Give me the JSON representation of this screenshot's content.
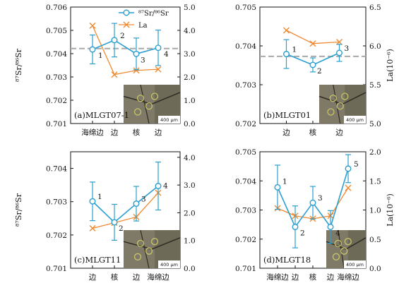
{
  "colors": {
    "sr_series": "#2a9fd0",
    "la_series": "#f08a32",
    "reference_line": "#a9a9a9",
    "axis": "#111111"
  },
  "legend": {
    "items": [
      {
        "label": "⁸⁷Sr/⁸⁶Sr",
        "series": "sr",
        "marker": "circle"
      },
      {
        "label": "La",
        "series": "la",
        "marker": "x"
      }
    ]
  },
  "chart_data": [
    {
      "type": "line",
      "panel_label": "(a)MLGT07-1",
      "categories": [
        "海绵边",
        "边",
        "核",
        "边"
      ],
      "ylabel_left": "⁸⁷Sr/⁸⁶Sr",
      "ylabel_right": "",
      "ylim_left": [
        0.701,
        0.706
      ],
      "yticks_left": [
        "0.701",
        "0.702",
        "0.703",
        "0.704",
        "0.705",
        "0.706"
      ],
      "ylim_right": [
        0.0,
        5.0
      ],
      "yticks_right": [
        "0.0",
        "1.0",
        "2.0",
        "3.0",
        "4.0",
        "5.0"
      ],
      "reference_line": 0.70422,
      "series": [
        {
          "name": "⁸⁷Sr/⁸⁶Sr",
          "axis": "left",
          "values": [
            0.70418,
            0.70458,
            0.70399,
            0.70425
          ],
          "error": [
            0.00062,
            0.00072,
            0.00068,
            0.00076
          ],
          "point_labels": [
            "1",
            "2",
            "3",
            "4"
          ]
        },
        {
          "name": "La",
          "axis": "right",
          "values": [
            4.2,
            2.1,
            2.28,
            2.33
          ]
        }
      ],
      "inset": {
        "scale_text": "400 μm"
      }
    },
    {
      "type": "line",
      "panel_label": "(b)MLGT01",
      "categories": [
        "边",
        "核",
        "边"
      ],
      "ylabel_left": "",
      "ylabel_right": "La(10⁻⁶)",
      "ylim_left": [
        0.702,
        0.705
      ],
      "yticks_left": [
        "0.702",
        "0.703",
        "0.704",
        "0.705"
      ],
      "ylim_right": [
        5.0,
        6.5
      ],
      "yticks_right": [
        "5.0",
        "5.5",
        "6.0",
        "6.5"
      ],
      "reference_line": 0.70373,
      "series": [
        {
          "name": "⁸⁷Sr/⁸⁶Sr",
          "axis": "left",
          "values": [
            0.70379,
            0.70351,
            0.70382
          ],
          "error": [
            0.00037,
            0.00018,
            0.00022
          ],
          "point_labels": [
            "1",
            "2",
            "3"
          ]
        },
        {
          "name": "La",
          "axis": "right",
          "values": [
            6.2,
            6.03,
            6.05
          ]
        }
      ],
      "inset": {
        "scale_text": "400 μm"
      }
    },
    {
      "type": "line",
      "panel_label": "(c)MLGT11",
      "categories": [
        "边",
        "核",
        "边",
        "海绵边"
      ],
      "ylabel_left": "⁸⁷Sr/⁸⁶Sr",
      "ylabel_right": "",
      "ylim_left": [
        0.701,
        0.7045
      ],
      "yticks_left": [
        "0.701",
        "0.702",
        "0.703",
        "0.704"
      ],
      "ylim_right": [
        0.0,
        4.2
      ],
      "yticks_right": [
        "0.0",
        "1.0",
        "2.0",
        "3.0",
        "4.0"
      ],
      "series": [
        {
          "name": "⁸⁷Sr/⁸⁶Sr",
          "axis": "left",
          "values": [
            0.70301,
            0.70238,
            0.70294,
            0.70347
          ],
          "error": [
            0.00058,
            0.00054,
            0.00052,
            0.00072
          ],
          "point_labels": [
            "1",
            "2",
            "3",
            "4"
          ]
        },
        {
          "name": "La",
          "axis": "right",
          "values": [
            1.44,
            1.64,
            1.85,
            2.72
          ]
        }
      ],
      "inset": {
        "scale_text": "400 μm"
      }
    },
    {
      "type": "line",
      "panel_label": "(d)MLGT18",
      "categories": [
        "海绵边",
        "边",
        "核",
        "边",
        "海绵边"
      ],
      "ylabel_left": "",
      "ylabel_right": "La(10⁻⁶)",
      "ylim_left": [
        0.701,
        0.705
      ],
      "yticks_left": [
        "0.701",
        "0.702",
        "0.703",
        "0.704",
        "0.705"
      ],
      "ylim_right": [
        0.0,
        2.0
      ],
      "yticks_right": [
        "0.0",
        "0.5",
        "1.0",
        "1.5",
        "2.0"
      ],
      "series": [
        {
          "name": "⁸⁷Sr/⁸⁶Sr",
          "axis": "left",
          "values": [
            0.70378,
            0.70242,
            0.70325,
            0.70242,
            0.70442
          ],
          "error": [
            0.00076,
            0.00072,
            0.00056,
            0.00056,
            0.00048
          ],
          "point_labels": [
            "1",
            "2",
            "3",
            "4",
            "5"
          ]
        },
        {
          "name": "La",
          "axis": "right",
          "values": [
            1.03,
            0.9,
            0.85,
            0.9,
            1.38
          ]
        }
      ],
      "inset": {
        "scale_text": "400 μm"
      }
    }
  ]
}
